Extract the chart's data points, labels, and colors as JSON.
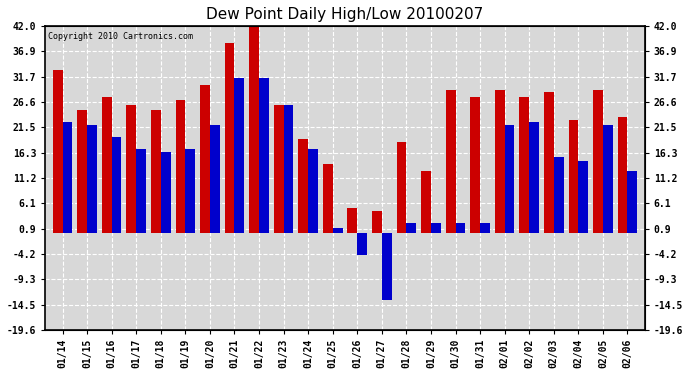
{
  "title": "Dew Point Daily High/Low 20100207",
  "copyright": "Copyright 2010 Cartronics.com",
  "dates": [
    "01/14",
    "01/15",
    "01/16",
    "01/17",
    "01/18",
    "01/19",
    "01/20",
    "01/21",
    "01/22",
    "01/23",
    "01/24",
    "01/25",
    "01/26",
    "01/27",
    "01/28",
    "01/29",
    "01/30",
    "01/31",
    "02/01",
    "02/02",
    "02/03",
    "02/04",
    "02/05",
    "02/06"
  ],
  "highs": [
    33.0,
    25.0,
    27.5,
    26.0,
    25.0,
    27.0,
    30.0,
    38.5,
    42.5,
    26.0,
    19.0,
    14.0,
    5.0,
    4.5,
    18.5,
    12.5,
    29.0,
    27.5,
    29.0,
    27.5,
    28.5,
    23.0,
    29.0,
    23.5
  ],
  "lows": [
    22.5,
    22.0,
    19.5,
    17.0,
    16.5,
    17.0,
    22.0,
    31.5,
    31.5,
    26.0,
    17.0,
    1.0,
    -4.5,
    -13.5,
    2.0,
    2.0,
    2.0,
    2.0,
    22.0,
    22.5,
    15.5,
    14.5,
    22.0,
    12.5
  ],
  "bar_color_high": "#cc0000",
  "bar_color_low": "#0000cc",
  "ylim": [
    -19.6,
    42.0
  ],
  "yticks": [
    -19.6,
    -14.5,
    -9.3,
    -4.2,
    0.9,
    6.1,
    11.2,
    16.3,
    21.5,
    26.6,
    31.7,
    36.9,
    42.0
  ],
  "bg_color": "#ffffff",
  "plot_bg_color": "#d8d8d8",
  "grid_color": "#ffffff",
  "title_fontsize": 11,
  "bar_width": 0.4
}
